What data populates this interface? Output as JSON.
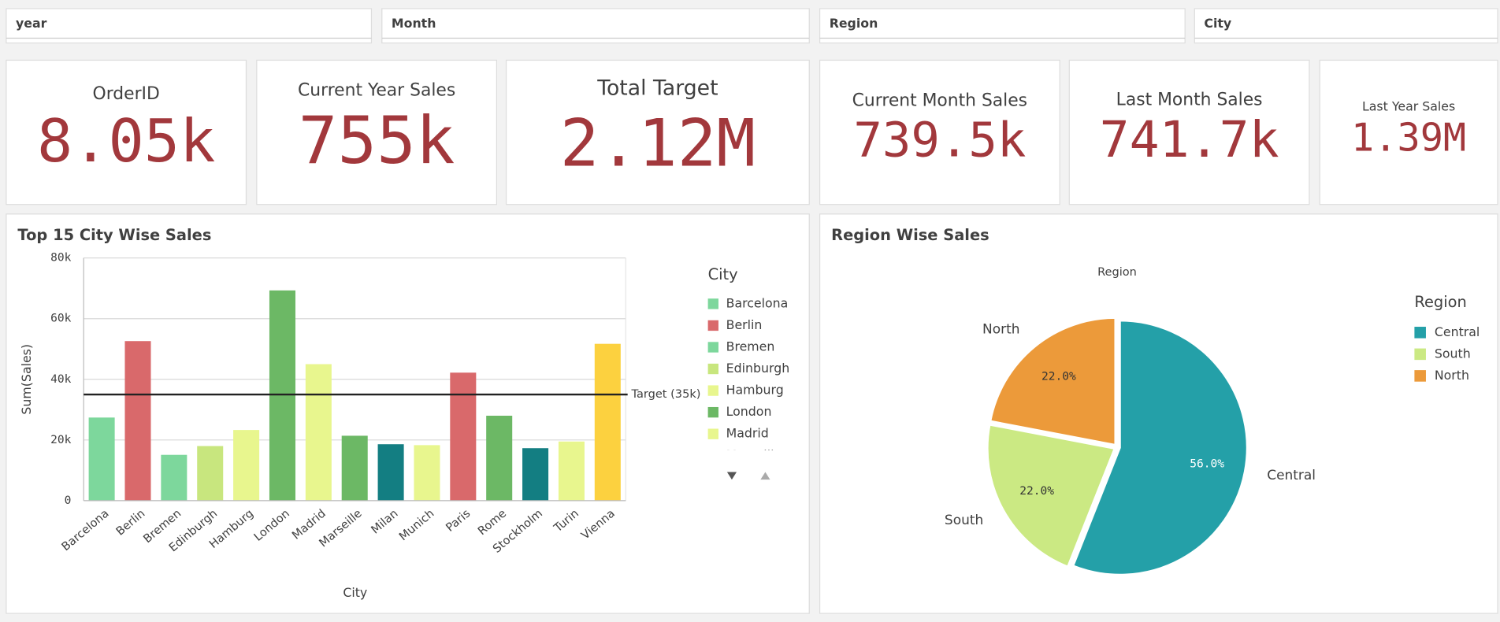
{
  "filters": [
    "year",
    "Month",
    "Region",
    "City"
  ],
  "kpis": [
    {
      "label": "OrderID",
      "value": "8.05k"
    },
    {
      "label": "Current Year Sales",
      "value": "755k"
    },
    {
      "label": "Total Target",
      "value": "2.12M"
    },
    {
      "label": "Current Month Sales",
      "value": "739.5k"
    },
    {
      "label": "Last Month Sales",
      "value": "741.7k"
    },
    {
      "label": "Last Year Sales",
      "value": "1.39M"
    }
  ],
  "chart_data": [
    {
      "type": "bar",
      "title": "Top 15 City Wise Sales",
      "x_label": "City",
      "y_label": "Sum(Sales)",
      "legend_title": "City",
      "categories": [
        "Barcelona",
        "Berlin",
        "Bremen",
        "Edinburgh",
        "Hamburg",
        "London",
        "Madrid",
        "Marseille",
        "Milan",
        "Munich",
        "Paris",
        "Rome",
        "Stockholm",
        "Turin",
        "Vienna"
      ],
      "values": [
        27400,
        52600,
        15100,
        18000,
        23300,
        69300,
        45000,
        21400,
        18600,
        18300,
        42200,
        28000,
        17300,
        19500,
        51700
      ],
      "colors": [
        "#7dd79c",
        "#d9696b",
        "#7dd79c",
        "#c8e67e",
        "#e8f68e",
        "#6cb865",
        "#e8f68e",
        "#6cb865",
        "#137e82",
        "#e8f68e",
        "#d9696b",
        "#6cb865",
        "#137e82",
        "#e8f68e",
        "#fcd13f"
      ],
      "ylim": [
        0,
        80000
      ],
      "yticks": [
        0,
        {
          "value": 20000,
          "label": "20k"
        },
        {
          "value": 40000,
          "label": "40k"
        },
        {
          "value": 60000,
          "label": "60k"
        },
        {
          "value": 80000,
          "label": "80k"
        }
      ],
      "grid": true,
      "reference_line": {
        "value": 35000,
        "label": "Target (35k)"
      }
    },
    {
      "type": "pie",
      "title": "Region Wise Sales",
      "label": "Region",
      "legend_title": "Region",
      "categories": [
        "Central",
        "South",
        "North"
      ],
      "values": [
        56,
        22,
        22
      ],
      "value_labels": [
        "56.0%",
        "22.0%",
        "22.0%"
      ],
      "colors": [
        "#24a0a8",
        "#cbe983",
        "#ec9a3a"
      ]
    }
  ]
}
